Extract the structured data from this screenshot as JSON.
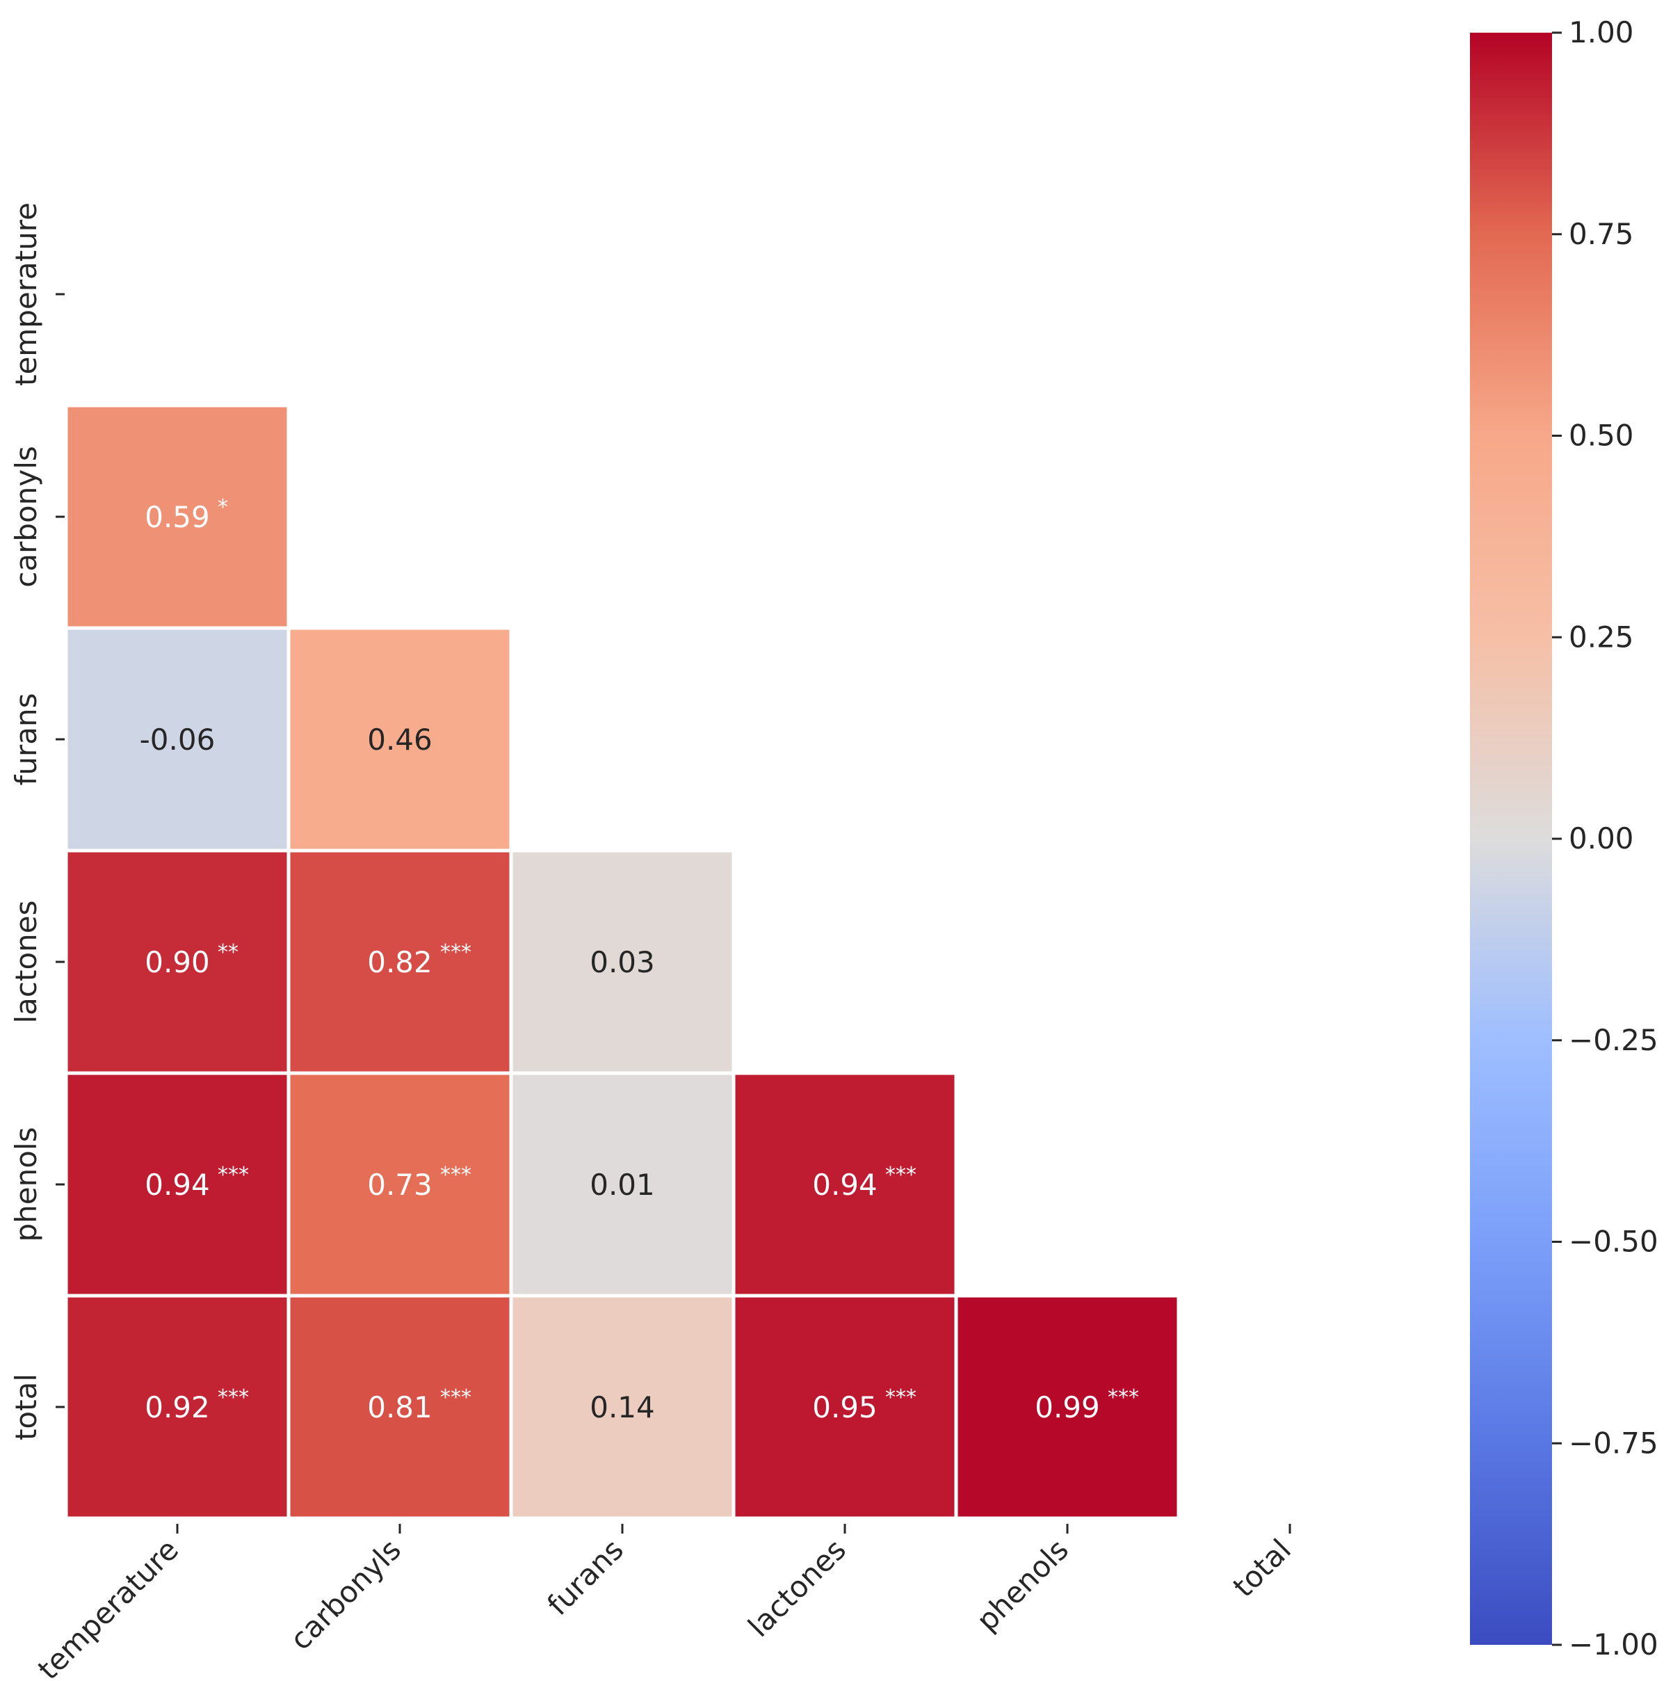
{
  "chart_data": {
    "type": "heatmap",
    "title": "",
    "xlabel": "",
    "ylabel": "",
    "labels": [
      "temperature",
      "carbonyls",
      "furans",
      "lactones",
      "phenols",
      "total"
    ],
    "mask": "upper-triangle-including-diagonal",
    "colormap": "coolwarm",
    "vmin": -1.0,
    "vmax": 1.0,
    "cells": [
      {
        "row": 1,
        "col": 0,
        "value": 0.59,
        "label": "0.59",
        "stars": "*"
      },
      {
        "row": 2,
        "col": 0,
        "value": -0.06,
        "label": "-0.06",
        "stars": ""
      },
      {
        "row": 2,
        "col": 1,
        "value": 0.46,
        "label": "0.46",
        "stars": ""
      },
      {
        "row": 3,
        "col": 0,
        "value": 0.9,
        "label": "0.90",
        "stars": "**"
      },
      {
        "row": 3,
        "col": 1,
        "value": 0.82,
        "label": "0.82",
        "stars": "***"
      },
      {
        "row": 3,
        "col": 2,
        "value": 0.03,
        "label": "0.03",
        "stars": ""
      },
      {
        "row": 4,
        "col": 0,
        "value": 0.94,
        "label": "0.94",
        "stars": "***"
      },
      {
        "row": 4,
        "col": 1,
        "value": 0.73,
        "label": "0.73",
        "stars": "***"
      },
      {
        "row": 4,
        "col": 2,
        "value": 0.01,
        "label": "0.01",
        "stars": ""
      },
      {
        "row": 4,
        "col": 3,
        "value": 0.94,
        "label": "0.94",
        "stars": "***"
      },
      {
        "row": 5,
        "col": 0,
        "value": 0.92,
        "label": "0.92",
        "stars": "***"
      },
      {
        "row": 5,
        "col": 1,
        "value": 0.81,
        "label": "0.81",
        "stars": "***"
      },
      {
        "row": 5,
        "col": 2,
        "value": 0.14,
        "label": "0.14",
        "stars": ""
      },
      {
        "row": 5,
        "col": 3,
        "value": 0.95,
        "label": "0.95",
        "stars": "***"
      },
      {
        "row": 5,
        "col": 4,
        "value": 0.99,
        "label": "0.99",
        "stars": "***"
      }
    ],
    "colorbar": {
      "ticks": [
        1.0,
        0.75,
        0.5,
        0.25,
        0.0,
        -0.25,
        -0.5,
        -0.75,
        -1.0
      ],
      "tick_labels": [
        "1.00",
        "0.75",
        "0.50",
        "0.25",
        "0.00",
        "−0.25",
        "−0.50",
        "−0.75",
        "−1.00"
      ]
    }
  }
}
